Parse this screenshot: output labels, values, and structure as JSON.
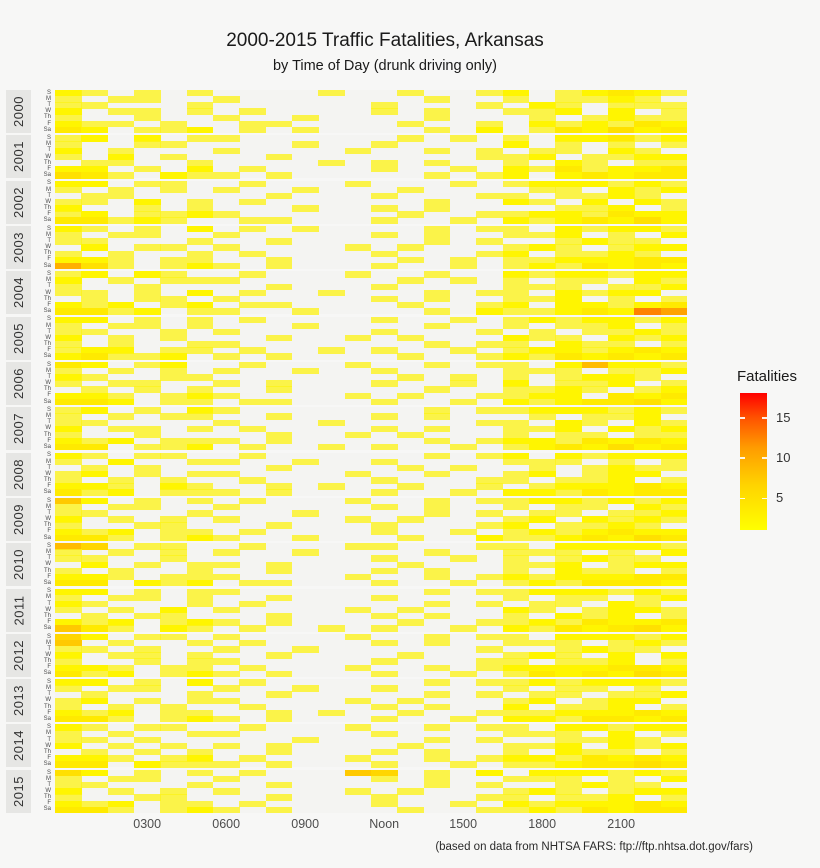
{
  "chart_data": {
    "type": "heatmap",
    "title": "2000-2015 Traffic Fatalities, Arkansas",
    "subtitle": "by Time of Day (drunk driving only)",
    "caption": "(based on data from NHTSA FARS: ftp://ftp.nhtsa.dot.gov/fars)",
    "legend": {
      "title": "Fatalities",
      "ticks": [
        15,
        10,
        5
      ],
      "min": 1,
      "max": 18
    },
    "x_axis": {
      "hours": 24,
      "tick_hours": [
        3,
        6,
        9,
        12,
        15,
        18,
        21
      ],
      "tick_labels": [
        "0300",
        "0600",
        "0900",
        "Noon",
        "1500",
        "1800",
        "2100"
      ]
    },
    "years": [
      "2000",
      "2001",
      "2002",
      "2003",
      "2004",
      "2005",
      "2006",
      "2007",
      "2008",
      "2009",
      "2010",
      "2011",
      "2012",
      "2013",
      "2014",
      "2015"
    ],
    "days": [
      "S",
      "M",
      "T",
      "W",
      "Th",
      "F",
      "Sa"
    ],
    "encoding": "Per year: 7 strings (Sun..Sat), 24 chars = hours 0000-2300; '.'=no fatalities; 1-9 and A=10..H=17 = fatality count (estimated from cell colors)",
    "values": {
      "2000": [
        "21.1.1....1..1..12.12321",
        "1.11..1.......1..1.1121.",
        "11...1......1...1.21.111",
        "2.11.1.1....1.1..112.2.1",
        "1..1..1..1....1...1.1211",
        "211.1..11....1..1.212132",
        "32.112.1.1....1.2.132423"
      ],
      "2001": [
        "12.2.11......1.1.1.22312",
        "1..11....1..1....2.1.1.1",
        "2.1...1....1..1.1.11.21.",
        "1.2.1...1.......112.1122",
        ".11..1....1.1.1..1.21.11",
        "22.1.2.1....1..1.2131223",
        "431.211.1.....1.12.23233"
      ],
      "2002": [
        "22.11..1...1...1.1222121",
        "1.1.1.1..1...1....11.212",
        ".11.....1...1...11.1121.",
        "11.2.1.1......1..21.2.21",
        "2..1.1...1..1.1....112.1",
        "12.1121......1..11221322",
        "33121..11...1..1.2123242"
      ],
      "2003": [
        "21.1.2.1.1....1.11.21221",
        "1.11..1.....1.1..112.1.2",
        "11...1..1.....1.1..1211.",
        ".2.11.1....1.1...121.122",
        "1.1..1.1....1...12.1121.",
        "221.11..1....1.1.1122233",
        "841.121.1...1..1.1213232"
      ],
      "2004": [
        "12.21..1...1..1..2122122",
        "2.1.111......1.1.1.11.21",
        "1..1....1...1....111.112",
        "11.1.2.1..1...1.11.2122.",
        ".1.11.1.....1.1..112.1.1",
        "212.12.11....1..12.22123",
        "3312.11..1....1.211232B9"
      ],
      "2005": [
        "22.1.1.1....1..1.1212212",
        "1.11.1...1....1..1.112.1",
        "11..1.1.....1...1.1.1121",
        "2.1.1...1..1.1...211.212",
        "1.1..11.......1.11.211.1",
        "122.11.1..1.1..1.1221232",
        "23112.1.1....1..12132323"
      ],
      "2006": [
        "32.12..1...1..1.11.27221",
        "1.1.1.1..1..1....111.112",
        "21..11.......1.1.1.1221.",
        "1.11..1.1...1..1.2.112.1",
        ".1.1.1..1.....1..1121.12",
        "221.121....1.1..1122.323",
        "332.11.11...1..1.2123342"
      ],
      "2007": [
        "12.1.21.......1.11222121",
        "1.1.11..1...1.1...1.112.",
        "11....1...1.....11.21.21",
        "2.11.1.1....1.1..112.212",
        "1..1....1..1.1...1.11.11",
        "212.111.1.....1.12213232",
        "33.112.1..1.1..1.1232423"
      ],
      "2008": [
        "21.11..1......1.12.21222",
        "1.2..11..1..1....111.1.1",
        ".1.1....1....1.1..1.1211",
        "12.1.11....1..1..12.122.",
        "1.1.1..1....1...11.112.1",
        "221.21..1.1..1..1.122232",
        "312.111.1...1..1.2213233"
      ],
      "2009": [
        "62.1.1.1...1..1.11221212",
        "1.11..1.....1.1..1.11.21",
        "11...1...1....1.1.11.112",
        "2.1.1.1....1.1...12.2121",
        "1..11...1...1...12.1121.",
        "212.11.1....1..1.1212322",
        "331.121..1...1..21123243"
      ],
      "2010": [
        "75.11..1...11...11.22221",
        "1.1.1.1..1....1..111.1.2",
        "11..1.......1..1.1.1211.",
        ".2.1.11.1....1...112.122",
        "1.1..1..1...1.1..1.211.1",
        "221.111....1..1.12122233",
        "33.212.11...1..1.1213332"
      ],
      "2011": [
        "22.1.11.......1.11222121",
        "1.11.1..1...1....1.11.12",
        "21...1.1......1.1.11.21.",
        "1.1.2.1....1.1...21.1221",
        ".1.11...1...1.1..1.212.1",
        "212.121.1....1..11213223",
        "631.21.1..1.1..1.2132342"
      ],
      "2012": [
        "52.11.1....1..1.11.22212",
        "6.1..1.1....1.1..111.121",
        "11.1..1..1......1..1211.",
        "2.11.1..1....1...121.2.2",
        "1..1.11.....1...11.112.1",
        "221.11.1...1..1.12222332",
        "312.121.1...1..1.1323243"
      ],
      "2013": [
        "22.1.2.1......1.11212221",
        "1.11..1..1..1....1.11.1.",
        ".1...1..1.....1.1.11.112",
        "12.1.11....1.1...12.122.",
        "1.1.1..1....1.1..2.112.1",
        "212.11..1.1..1..11122232",
        "331.121.1...1..1.2213323"
      ],
      "2014": [
        "21.11..1...1..1.11.22122",
        "1.1..11.....1....111.2.1",
        "11.1.....1....1.1..1121.",
        "2.1.1.1.1....1...112.212",
        ".1.1.1..1...1.1..1.211.1",
        "221.12.1...1..1.12213232",
        "33.2111.1...1..1.1123343"
      ],
      "2015": [
        "42.1.1.1...65.1.2.222121",
        "1.11..1.....1.1..111.1.2",
        "11...1..1.....1.1..1211.",
        "2.1.1.1....1.1...121.122",
        "1..11...1...1...11.112.1",
        "212.11.1....1..1.2122232",
        "331.121.1....1..11213233"
      ]
    },
    "colors": {
      "background": "#f7f7f6",
      "panel_background": "#f4f4f2",
      "facet_strip": "#e6e6e4",
      "gradient_low": "#ffff00",
      "gradient_mid": "#ff9c00",
      "gradient_high": "#ff0000",
      "text": "#1a1a1a",
      "axis_text": "#4d4d4d"
    }
  }
}
